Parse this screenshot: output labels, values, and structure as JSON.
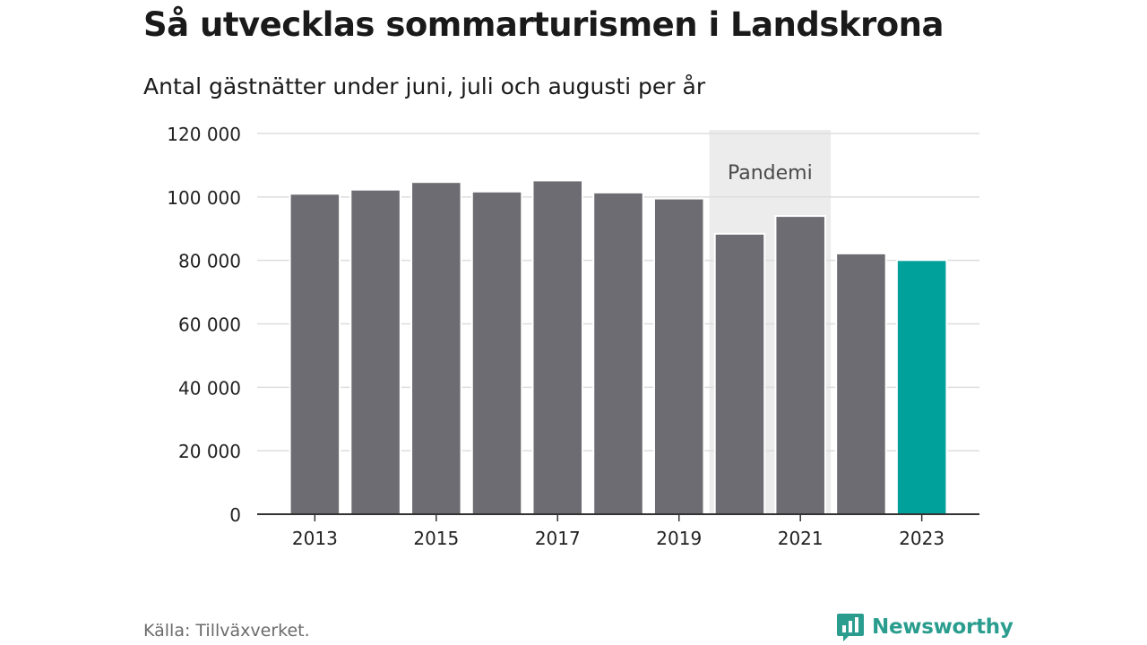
{
  "header": {
    "title": "Så utvecklas sommarturismen i Landskrona",
    "subtitle": "Antal gästnätter under juni, juli och augusti per år"
  },
  "chart_data": {
    "type": "bar",
    "categories": [
      "2013",
      "2014",
      "2015",
      "2016",
      "2017",
      "2018",
      "2019",
      "2020",
      "2021",
      "2022",
      "2023"
    ],
    "values": [
      101000,
      102300,
      104700,
      101700,
      105200,
      101400,
      99500,
      88400,
      94000,
      82200,
      80100
    ],
    "ylim": [
      0,
      120000
    ],
    "y_ticks": [
      0,
      20000,
      40000,
      60000,
      80000,
      100000,
      120000
    ],
    "y_tick_labels": [
      "0",
      "20 000",
      "40 000",
      "60 000",
      "80 000",
      "100 000",
      "120 000"
    ],
    "x_tick_labels": [
      "2013",
      "2015",
      "2017",
      "2019",
      "2021",
      "2023"
    ],
    "grid": true,
    "colors": {
      "bar": "#6d6c72",
      "highlight": "#00a19a",
      "band": "#ececec",
      "grid": "#dddddd",
      "axis": "#333333"
    },
    "highlight_category": "2023",
    "annotation": {
      "label": "Pandemi",
      "from": "2020",
      "to": "2021"
    }
  },
  "footer": {
    "source": "Källa: Tillväxverket.",
    "brand": "Newsworthy",
    "brand_icon": "bar-chart-speech-bubble-icon",
    "brand_color": "#2a9d8f"
  }
}
